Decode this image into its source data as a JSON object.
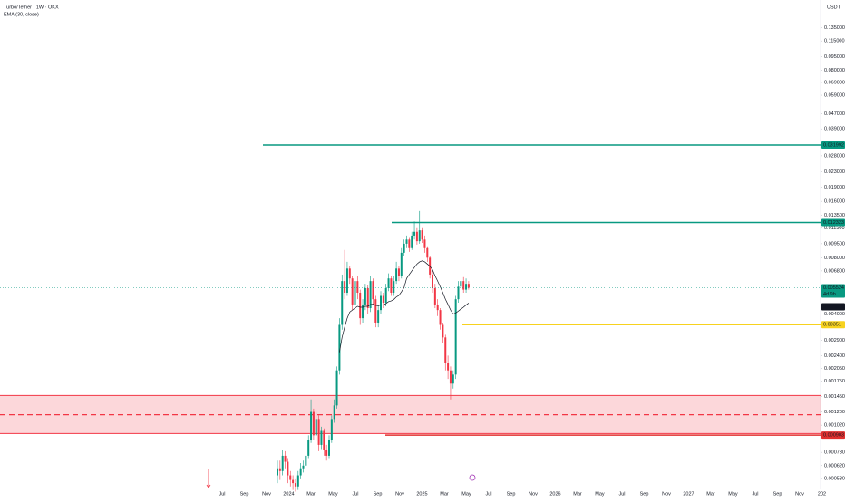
{
  "chart_data": {
    "type": "candlestick",
    "title": "Turbo/Tether · 1W · OKX",
    "indicator": "EMA (30, close)",
    "currency": "USDT",
    "countdown": "4d 9h",
    "log_scale": true,
    "ylim": [
      0.000463,
      0.174
    ],
    "yticks": [
      {
        "value": 0.135,
        "label": "0.135000"
      },
      {
        "value": 0.115,
        "label": "0.115000"
      },
      {
        "value": 0.095,
        "label": "0.095000"
      },
      {
        "value": 0.08,
        "label": "0.080000"
      },
      {
        "value": 0.069,
        "label": "0.069000"
      },
      {
        "value": 0.059,
        "label": "0.059000"
      },
      {
        "value": 0.047,
        "label": "0.047000"
      },
      {
        "value": 0.039,
        "label": "0.039000"
      },
      {
        "value": 0.028,
        "label": "0.028000"
      },
      {
        "value": 0.023,
        "label": "0.023000"
      },
      {
        "value": 0.019,
        "label": "0.019000"
      },
      {
        "value": 0.016,
        "label": "0.016000"
      },
      {
        "value": 0.0135,
        "label": "0.013500"
      },
      {
        "value": 0.0115,
        "label": "0.011500"
      },
      {
        "value": 0.0095,
        "label": "0.009500"
      },
      {
        "value": 0.008,
        "label": "0.008000"
      },
      {
        "value": 0.0068,
        "label": "0.006800"
      },
      {
        "value": 0.004,
        "label": "0.004000"
      },
      {
        "value": 0.0029,
        "label": "0.002900"
      },
      {
        "value": 0.0024,
        "label": "0.002400"
      },
      {
        "value": 0.00205,
        "label": "0.002050"
      },
      {
        "value": 0.00175,
        "label": "0.001750"
      },
      {
        "value": 0.00145,
        "label": "0.001450"
      },
      {
        "value": 0.0012,
        "label": "0.001200"
      },
      {
        "value": 0.00102,
        "label": "0.001020"
      },
      {
        "value": 0.00073,
        "label": "0.000730"
      },
      {
        "value": 0.00062,
        "label": "0.000620"
      },
      {
        "value": 0.00053,
        "label": "0.000530"
      }
    ],
    "x_labels": [
      "Jul",
      "Sep",
      "Nov",
      "2024",
      "Mar",
      "May",
      "Jul",
      "Sep",
      "Nov",
      "2025",
      "Mar",
      "May",
      "Jul",
      "Sep",
      "Nov",
      "2026",
      "Mar",
      "May",
      "Jul",
      "Sep",
      "Nov",
      "2027",
      "Mar",
      "May",
      "Jul",
      "Sep",
      "Nov",
      "202"
    ],
    "up_color": "#089981",
    "down_color": "#f23645",
    "ema_color": "#131722",
    "open": [
      0.00055,
      0.0006,
      0.00058,
      0.0007,
      0.00065,
      0.00055,
      0.00052,
      0.0005,
      0.00048,
      0.00055,
      0.0006,
      0.00062,
      0.0007,
      0.00085,
      0.0012,
      0.0009,
      0.0011,
      0.0008,
      0.00095,
      0.00075,
      0.0007,
      0.00085,
      0.0011,
      0.0013,
      0.002,
      0.0035,
      0.006,
      0.0052,
      0.007,
      0.0062,
      0.0045,
      0.006,
      0.0052,
      0.0038,
      0.0045,
      0.0055,
      0.0043,
      0.006,
      0.0048,
      0.0036,
      0.0042,
      0.005,
      0.0046,
      0.0055,
      0.0062,
      0.0052,
      0.006,
      0.007,
      0.0064,
      0.0085,
      0.0095,
      0.01,
      0.009,
      0.0105,
      0.011,
      0.0098,
      0.0112,
      0.01,
      0.009,
      0.008,
      0.0065,
      0.0055,
      0.0045,
      0.0042,
      0.0035,
      0.003,
      0.0022,
      0.002,
      0.0017,
      0.0019,
      0.0048,
      0.0056,
      0.006,
      0.0054,
      0.0058
    ],
    "high": [
      0.00066,
      0.00066,
      0.00075,
      0.00074,
      0.00068,
      0.00058,
      0.00055,
      0.00053,
      0.00058,
      0.00064,
      0.00066,
      0.00074,
      0.0009,
      0.0014,
      0.00125,
      0.0012,
      0.00115,
      0.001,
      0.00098,
      0.0008,
      0.0009,
      0.00115,
      0.0014,
      0.0021,
      0.0038,
      0.0065,
      0.0088,
      0.0076,
      0.0072,
      0.0064,
      0.0065,
      0.0064,
      0.0054,
      0.0048,
      0.0058,
      0.0057,
      0.0064,
      0.0062,
      0.005,
      0.0045,
      0.0053,
      0.0052,
      0.0058,
      0.0066,
      0.0064,
      0.0064,
      0.0076,
      0.0072,
      0.009,
      0.01,
      0.0105,
      0.0102,
      0.011,
      0.0125,
      0.0115,
      0.0142,
      0.0115,
      0.0105,
      0.0092,
      0.0082,
      0.0068,
      0.0058,
      0.0048,
      0.0043,
      0.0036,
      0.0031,
      0.0024,
      0.0021,
      0.002,
      0.005,
      0.006,
      0.0068,
      0.0063,
      0.0062,
      0.006
    ],
    "low": [
      0.0005,
      0.00052,
      0.00055,
      0.0006,
      0.0005,
      0.00048,
      0.00046,
      0.00045,
      0.00046,
      0.00053,
      0.00057,
      0.0006,
      0.00068,
      0.00082,
      0.00085,
      0.00084,
      0.00074,
      0.00076,
      0.0007,
      0.00066,
      0.00068,
      0.00082,
      0.00105,
      0.00125,
      0.0019,
      0.0033,
      0.0048,
      0.005,
      0.0058,
      0.0042,
      0.0043,
      0.0048,
      0.0035,
      0.0036,
      0.0042,
      0.004,
      0.0041,
      0.0045,
      0.0034,
      0.0034,
      0.004,
      0.0043,
      0.0044,
      0.0053,
      0.005,
      0.005,
      0.0058,
      0.006,
      0.0062,
      0.0082,
      0.009,
      0.0086,
      0.0088,
      0.01,
      0.0094,
      0.0095,
      0.0096,
      0.0085,
      0.0076,
      0.0062,
      0.0052,
      0.0043,
      0.0039,
      0.0033,
      0.0028,
      0.002,
      0.0018,
      0.0014,
      0.0016,
      0.0018,
      0.0046,
      0.0054,
      0.0052,
      0.0052,
      0.0054
    ],
    "close": [
      0.0006,
      0.00058,
      0.0007,
      0.00065,
      0.00055,
      0.00052,
      0.0005,
      0.00048,
      0.00055,
      0.0006,
      0.00062,
      0.0007,
      0.00085,
      0.0012,
      0.0009,
      0.0011,
      0.0008,
      0.00095,
      0.00075,
      0.0007,
      0.00085,
      0.0011,
      0.0013,
      0.002,
      0.0035,
      0.006,
      0.0052,
      0.007,
      0.0062,
      0.0045,
      0.006,
      0.0052,
      0.0038,
      0.0045,
      0.0055,
      0.0043,
      0.006,
      0.0048,
      0.0036,
      0.0042,
      0.005,
      0.0046,
      0.0055,
      0.0062,
      0.0052,
      0.006,
      0.007,
      0.0064,
      0.0085,
      0.0095,
      0.01,
      0.009,
      0.0105,
      0.011,
      0.0098,
      0.0112,
      0.01,
      0.009,
      0.008,
      0.0065,
      0.0055,
      0.0045,
      0.0042,
      0.0035,
      0.003,
      0.0022,
      0.002,
      0.0017,
      0.0019,
      0.0048,
      0.0056,
      0.006,
      0.0054,
      0.0058,
      0.005524
    ],
    "ema": [
      null,
      null,
      null,
      null,
      null,
      null,
      null,
      null,
      null,
      null,
      null,
      null,
      null,
      null,
      null,
      null,
      null,
      null,
      null,
      null,
      null,
      null,
      null,
      null,
      0.0025,
      0.003,
      0.0034,
      0.0038,
      0.0041,
      0.0042,
      0.0043,
      0.0044,
      0.00435,
      0.00435,
      0.0044,
      0.0044,
      0.0045,
      0.00452,
      0.00445,
      0.00443,
      0.00447,
      0.00448,
      0.00455,
      0.00466,
      0.0047,
      0.00478,
      0.00493,
      0.00503,
      0.00526,
      0.00554,
      0.0062,
      0.0065,
      0.0068,
      0.0071,
      0.0074,
      0.0076,
      0.0077,
      0.0076,
      0.0074,
      0.0072,
      0.0069,
      0.0064,
      0.006,
      0.0056,
      0.0052,
      0.0048,
      0.0045,
      0.0042,
      0.004,
      0.00405,
      0.00415,
      0.00425,
      0.00435,
      0.00447,
      0.004576
    ],
    "levels": [
      {
        "price": 0.031992,
        "color": "#089981"
      },
      {
        "price": 0.012323,
        "color": "#089981"
      },
      {
        "price": 0.00351,
        "color": "#f7d21e"
      },
      {
        "price": 0.000903,
        "color": "#e0312f"
      }
    ],
    "zone": {
      "top": 0.00147,
      "middle": 0.00116,
      "bottom": 0.00092,
      "color": "#f23645"
    }
  }
}
